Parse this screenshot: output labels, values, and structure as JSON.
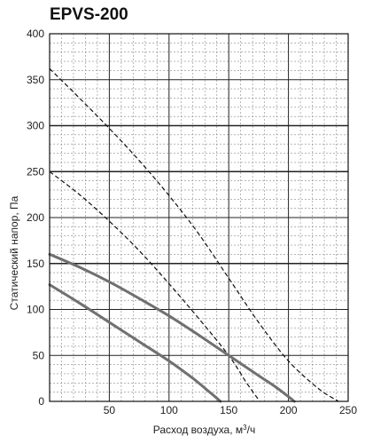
{
  "chart_data": {
    "type": "line",
    "title": "EPVS-200",
    "xlabel_main": "Расход воздуха, м",
    "xlabel_sup": "3",
    "xlabel_tail": "/ч",
    "ylabel": "Статический напор, Па",
    "xlim": [
      0,
      250
    ],
    "ylim": [
      0,
      400
    ],
    "x_ticks": [
      0,
      50,
      100,
      150,
      200,
      250
    ],
    "y_ticks": [
      0,
      50,
      100,
      150,
      200,
      250,
      300,
      350,
      400
    ],
    "grid": true,
    "series": [
      {
        "style": "dashed",
        "color": "#111111",
        "points": [
          [
            0,
            362
          ],
          [
            25,
            330
          ],
          [
            50,
            297
          ],
          [
            75,
            262
          ],
          [
            100,
            224
          ],
          [
            125,
            182
          ],
          [
            150,
            134
          ],
          [
            175,
            86
          ],
          [
            200,
            44
          ],
          [
            225,
            14
          ],
          [
            242,
            0
          ]
        ]
      },
      {
        "style": "dashed",
        "color": "#111111",
        "points": [
          [
            0,
            250
          ],
          [
            25,
            225
          ],
          [
            50,
            196
          ],
          [
            75,
            164
          ],
          [
            100,
            128
          ],
          [
            125,
            90
          ],
          [
            150,
            50
          ],
          [
            165,
            20
          ],
          [
            176,
            0
          ]
        ]
      },
      {
        "style": "solid",
        "color": "#707070",
        "points": [
          [
            0,
            160
          ],
          [
            25,
            146
          ],
          [
            50,
            130
          ],
          [
            75,
            112
          ],
          [
            100,
            93
          ],
          [
            125,
            72
          ],
          [
            150,
            50
          ],
          [
            175,
            28
          ],
          [
            190,
            15
          ],
          [
            205,
            0
          ]
        ]
      },
      {
        "style": "solid",
        "color": "#707070",
        "points": [
          [
            0,
            127
          ],
          [
            25,
            107
          ],
          [
            50,
            86
          ],
          [
            75,
            65
          ],
          [
            100,
            44
          ],
          [
            120,
            25
          ],
          [
            135,
            9
          ],
          [
            143,
            0
          ]
        ]
      }
    ]
  }
}
